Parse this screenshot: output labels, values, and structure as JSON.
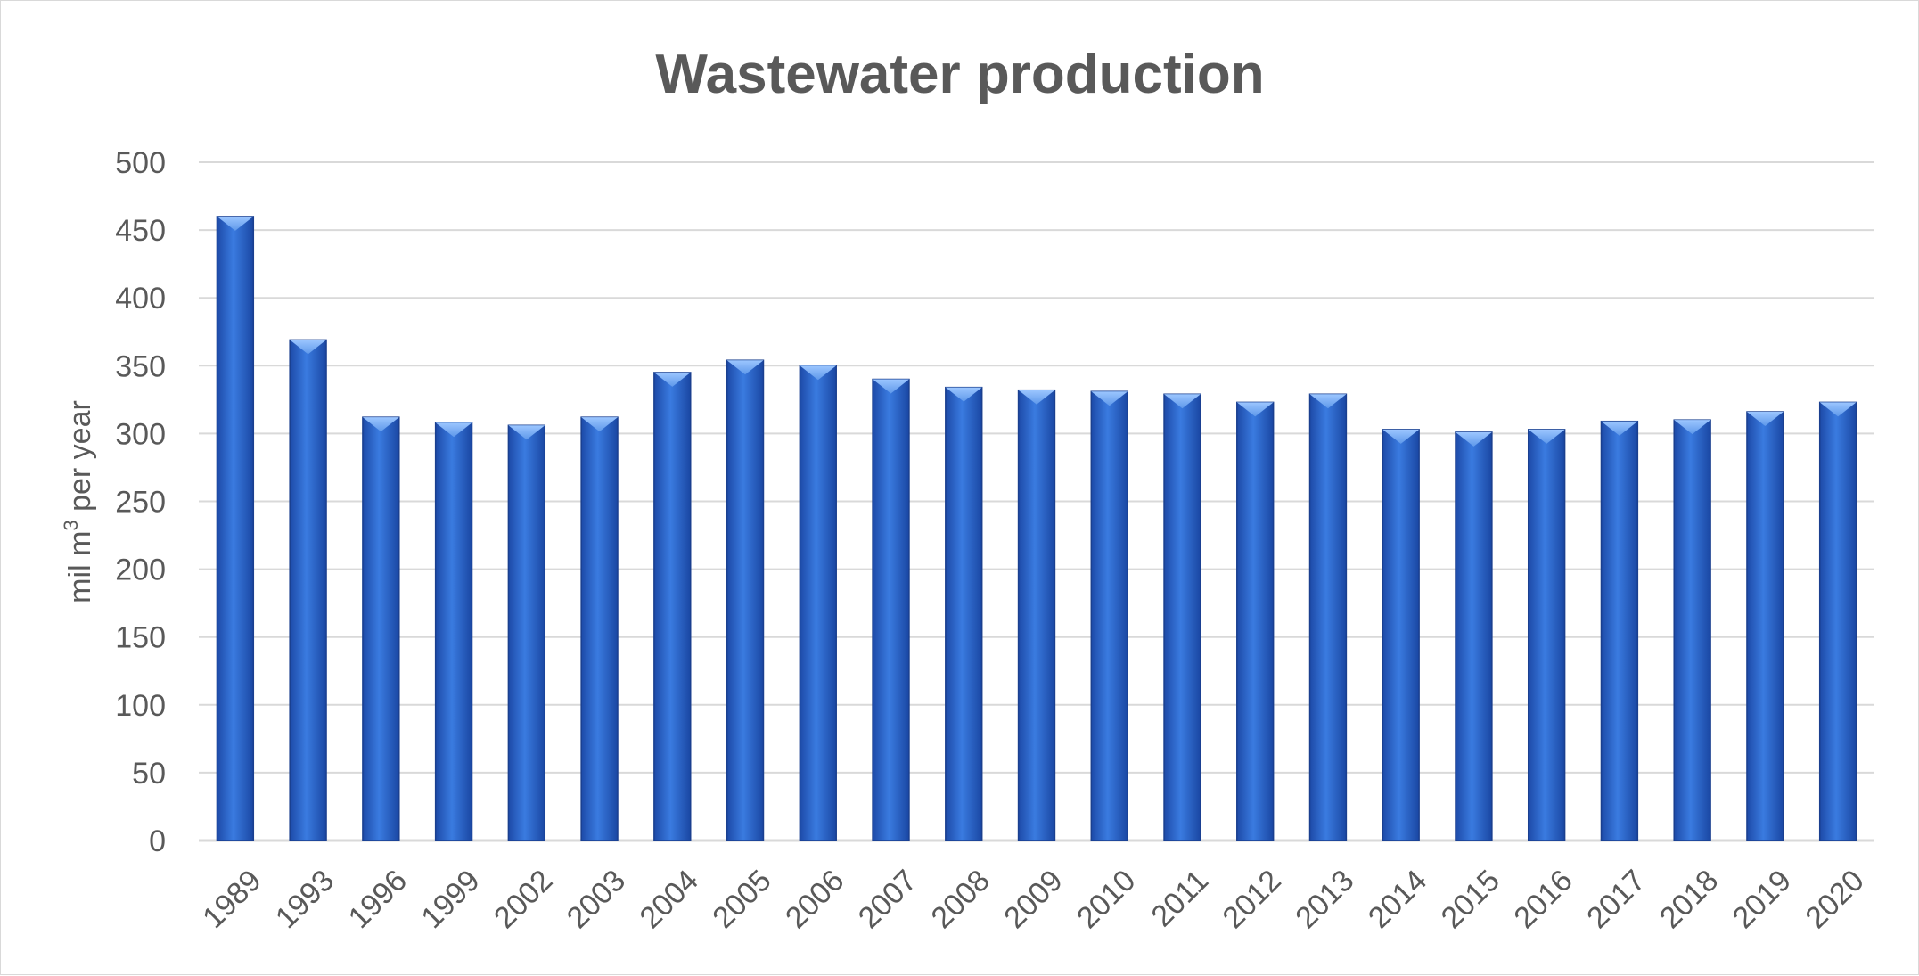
{
  "chart_data": {
    "type": "bar",
    "title": "Wastewater production",
    "ylabel": "mil m",
    "ylabel_sup": "3",
    "ylabel_suffix": " per year",
    "xlabel": "",
    "ylim": [
      0,
      500
    ],
    "yticks": [
      0,
      50,
      100,
      150,
      200,
      250,
      300,
      350,
      400,
      450,
      500
    ],
    "grid": true,
    "legend": "none",
    "bar_color": "#2f6fd8",
    "categories": [
      "1989",
      "1993",
      "1996",
      "1999",
      "2002",
      "2003",
      "2004",
      "2005",
      "2006",
      "2007",
      "2008",
      "2009",
      "2010",
      "2011",
      "2012",
      "2013",
      "2014",
      "2015",
      "2016",
      "2017",
      "2018",
      "2019",
      "2020"
    ],
    "values": [
      460,
      369,
      312,
      308,
      306,
      312,
      345,
      354,
      350,
      340,
      334,
      332,
      331,
      329,
      323,
      329,
      303,
      301,
      303,
      309,
      310,
      316,
      323
    ]
  }
}
